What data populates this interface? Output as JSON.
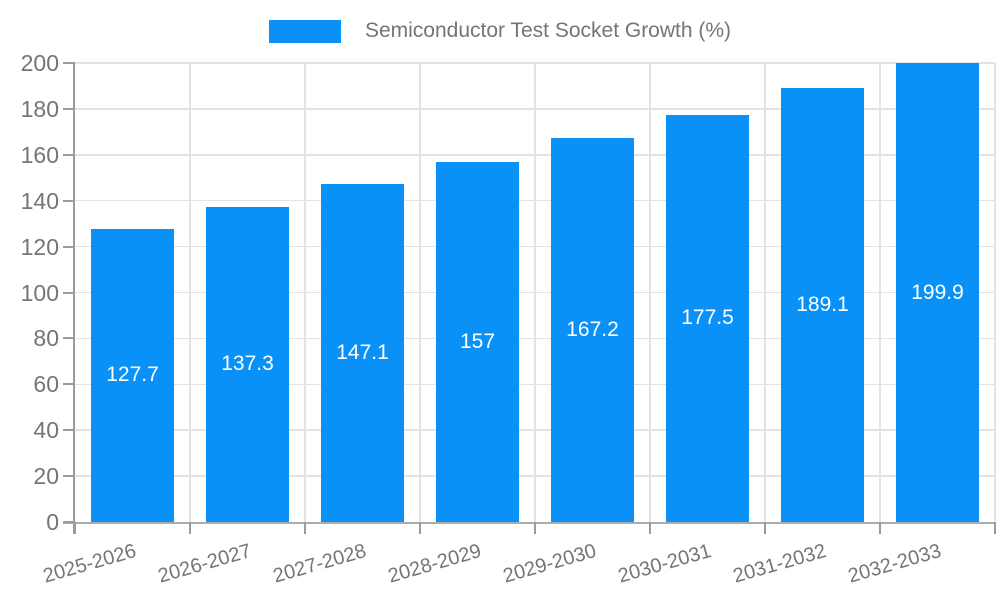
{
  "legend": {
    "label": "Semiconductor Test Socket Growth (%)"
  },
  "chart_data": {
    "type": "bar",
    "title": "Semiconductor Test Socket Growth (%)",
    "series_name": "Semiconductor Test Socket Growth (%)",
    "categories": [
      "2025-2026",
      "2026-2027",
      "2027-2028",
      "2028-2029",
      "2029-2030",
      "2030-2031",
      "2031-2032",
      "2032-2033"
    ],
    "values": [
      127.7,
      137.3,
      147.1,
      157,
      167.2,
      177.5,
      189.1,
      199.9
    ],
    "xlabel": "",
    "ylabel": "",
    "ylim": [
      0,
      200
    ],
    "yticks": [
      0,
      20,
      40,
      60,
      80,
      100,
      120,
      140,
      160,
      180,
      200
    ],
    "grid": true,
    "legend_position": "top",
    "bar_color": "#0a91f8",
    "value_label_color": "#ffffff",
    "axis_text_color": "#757575"
  }
}
